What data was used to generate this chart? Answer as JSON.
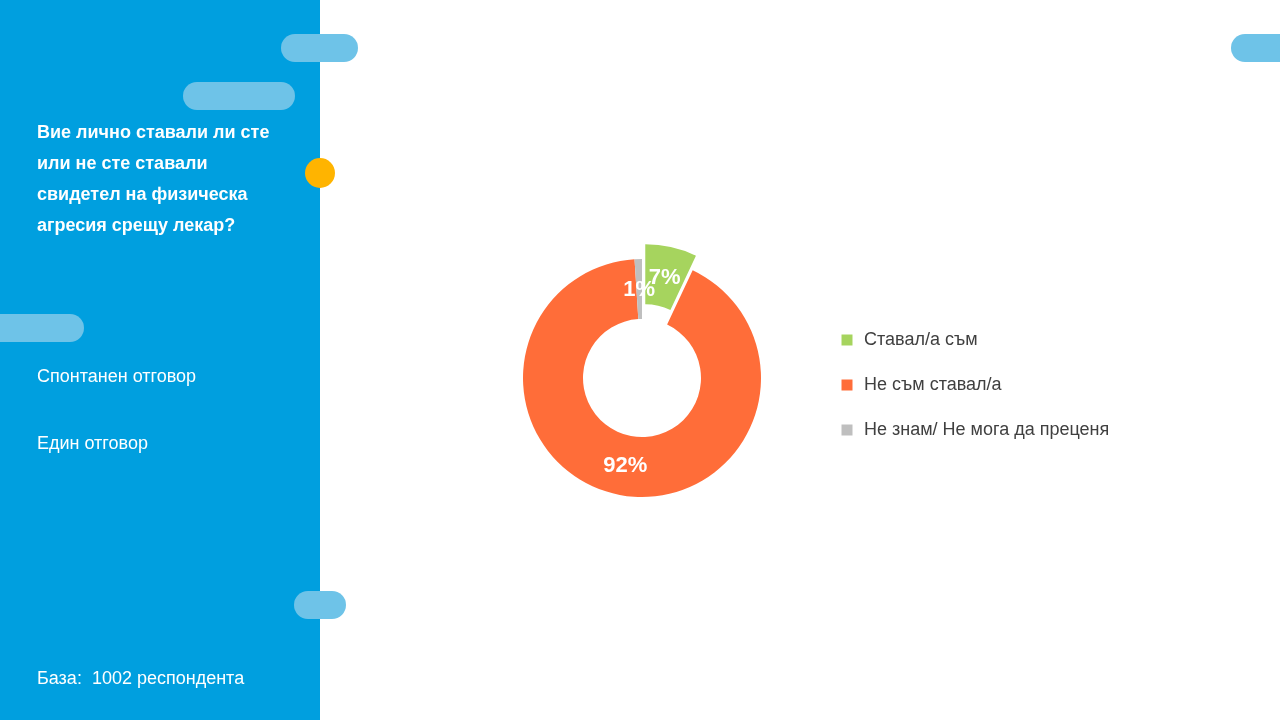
{
  "chart_data": {
    "type": "donut",
    "title": "Вие лично ставали ли сте или не сте ставали свидетел на физическа агресия срещу лекар?",
    "categories": [
      "Ставал/а съм",
      "Не съм ставал/а",
      "Не знам/ Не мога да преценя"
    ],
    "values": [
      7,
      92,
      1
    ],
    "colors": [
      "#a6d45e",
      "#ff6d39",
      "#bfbfbf"
    ],
    "value_labels": [
      "7%",
      "92%",
      "1%"
    ],
    "legend": "right",
    "annotations": [
      "Спонтанен отговор",
      "Един отговор",
      "База:  1002 респондента"
    ]
  }
}
